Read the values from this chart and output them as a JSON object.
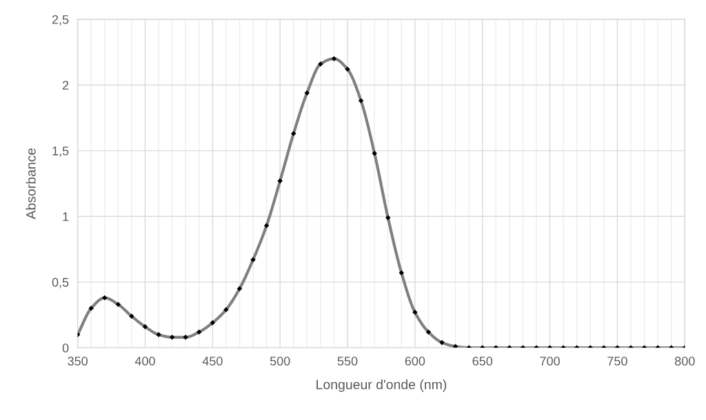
{
  "chart_data": {
    "type": "line",
    "xlabel": "Longueur d'onde (nm)",
    "ylabel": "Absorbance",
    "x": [
      350,
      360,
      370,
      380,
      390,
      400,
      410,
      420,
      430,
      440,
      450,
      460,
      470,
      480,
      490,
      500,
      510,
      520,
      530,
      540,
      550,
      560,
      570,
      580,
      590,
      600,
      610,
      620,
      630,
      640,
      650,
      660,
      670,
      680,
      690,
      700,
      710,
      720,
      730,
      740,
      750,
      760,
      770,
      780,
      790,
      800
    ],
    "series": [
      {
        "color": "#808080",
        "values": [
          0.1,
          0.3,
          0.38,
          0.33,
          0.24,
          0.16,
          0.1,
          0.08,
          0.08,
          0.12,
          0.19,
          0.29,
          0.45,
          0.67,
          0.93,
          1.27,
          1.63,
          1.94,
          2.16,
          2.2,
          2.12,
          1.88,
          1.48,
          0.99,
          0.57,
          0.27,
          0.12,
          0.04,
          0.01,
          0,
          0,
          0,
          0,
          0,
          0,
          0,
          0,
          0,
          0,
          0,
          0,
          0,
          0,
          0,
          0,
          0
        ]
      }
    ],
    "xlim": [
      350,
      800
    ],
    "xticks": [
      350,
      {
        "value": 360,
        "label": null
      },
      {
        "value": 370,
        "label": null
      },
      {
        "value": 380,
        "label": null
      },
      {
        "value": 390,
        "label": null
      },
      400,
      {
        "value": 410,
        "label": null
      },
      {
        "value": 420,
        "label": null
      },
      {
        "value": 430,
        "label": null
      },
      {
        "value": 440,
        "label": null
      },
      450,
      {
        "value": 460,
        "label": null
      },
      {
        "value": 470,
        "label": null
      },
      {
        "value": 480,
        "label": null
      },
      {
        "value": 490,
        "label": null
      },
      500,
      {
        "value": 510,
        "label": null
      },
      {
        "value": 520,
        "label": null
      },
      {
        "value": 530,
        "label": null
      },
      {
        "value": 540,
        "label": null
      },
      550,
      {
        "value": 560,
        "label": null
      },
      {
        "value": 570,
        "label": null
      },
      {
        "value": 580,
        "label": null
      },
      {
        "value": 590,
        "label": null
      },
      600,
      {
        "value": 610,
        "label": null
      },
      {
        "value": 620,
        "label": null
      },
      {
        "value": 630,
        "label": null
      },
      {
        "value": 640,
        "label": null
      },
      650,
      {
        "value": 660,
        "label": null
      },
      {
        "value": 670,
        "label": null
      },
      {
        "value": 680,
        "label": null
      },
      {
        "value": 690,
        "label": null
      },
      700,
      {
        "value": 710,
        "label": null
      },
      {
        "value": 720,
        "label": null
      },
      {
        "value": 730,
        "label": null
      },
      {
        "value": 740,
        "label": null
      },
      750,
      {
        "value": 760,
        "label": null
      },
      {
        "value": 770,
        "label": null
      },
      {
        "value": 780,
        "label": null
      },
      {
        "value": 790,
        "label": null
      },
      800
    ],
    "ylim": [
      0,
      2.5
    ],
    "yticks": [
      0,
      {
        "value": 0.5,
        "label": "0,5"
      },
      1,
      {
        "value": 1.5,
        "label": "1,5"
      },
      2,
      {
        "value": 2.5,
        "label": "2,5"
      }
    ],
    "grid": true,
    "marker": "diamond",
    "line_style": "solid"
  }
}
